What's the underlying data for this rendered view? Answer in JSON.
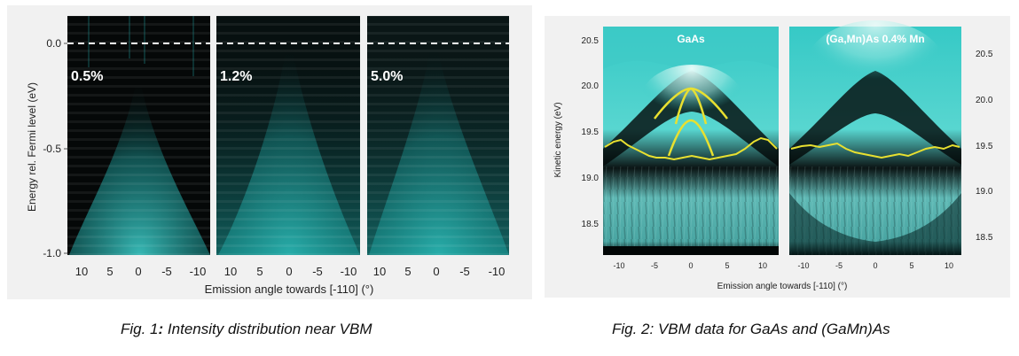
{
  "figure1": {
    "ylabel": "Energy rel. Fermi level (eV)",
    "xlabel": "Emission angle towards [-110]  (°)",
    "yticks": [
      "0.0",
      "-0.5",
      "-1.0"
    ],
    "xticks": [
      "10",
      "5",
      "0",
      "-5",
      "-10"
    ],
    "panels": [
      {
        "label": "0.5%"
      },
      {
        "label": "1.2%"
      },
      {
        "label": "5.0%"
      }
    ]
  },
  "figure2": {
    "ylabel": "Kinetic energy (eV)",
    "xlabel": "Emission angle towards [-110]  (°)",
    "left_yticks": [
      "20.5",
      "20.0",
      "19.5",
      "19.0",
      "18.5"
    ],
    "right_yticks": [
      "20.5",
      "20.0",
      "19.5",
      "19.0",
      "18.5"
    ],
    "left_xticks": [
      "-10",
      "-5",
      "0",
      "5",
      "10"
    ],
    "right_xticks": [
      "-10",
      "-5",
      "0",
      "5",
      "10"
    ],
    "panels": [
      {
        "label": "GaAs"
      },
      {
        "label": "(Ga,Mn)As  0.4% Mn"
      }
    ]
  },
  "captions": {
    "fig1_prefix": "Fig. 1",
    "fig1_sep": ": ",
    "fig1_text": "Intensity distribution near VBM",
    "fig2_text": "Fig. 2: VBM data for GaAs and (GaMn)As"
  },
  "colors": {
    "teal": "#2fc4c4",
    "dark": "#050a0a",
    "yellow": "#e8e030",
    "dash": "#ffffff"
  }
}
